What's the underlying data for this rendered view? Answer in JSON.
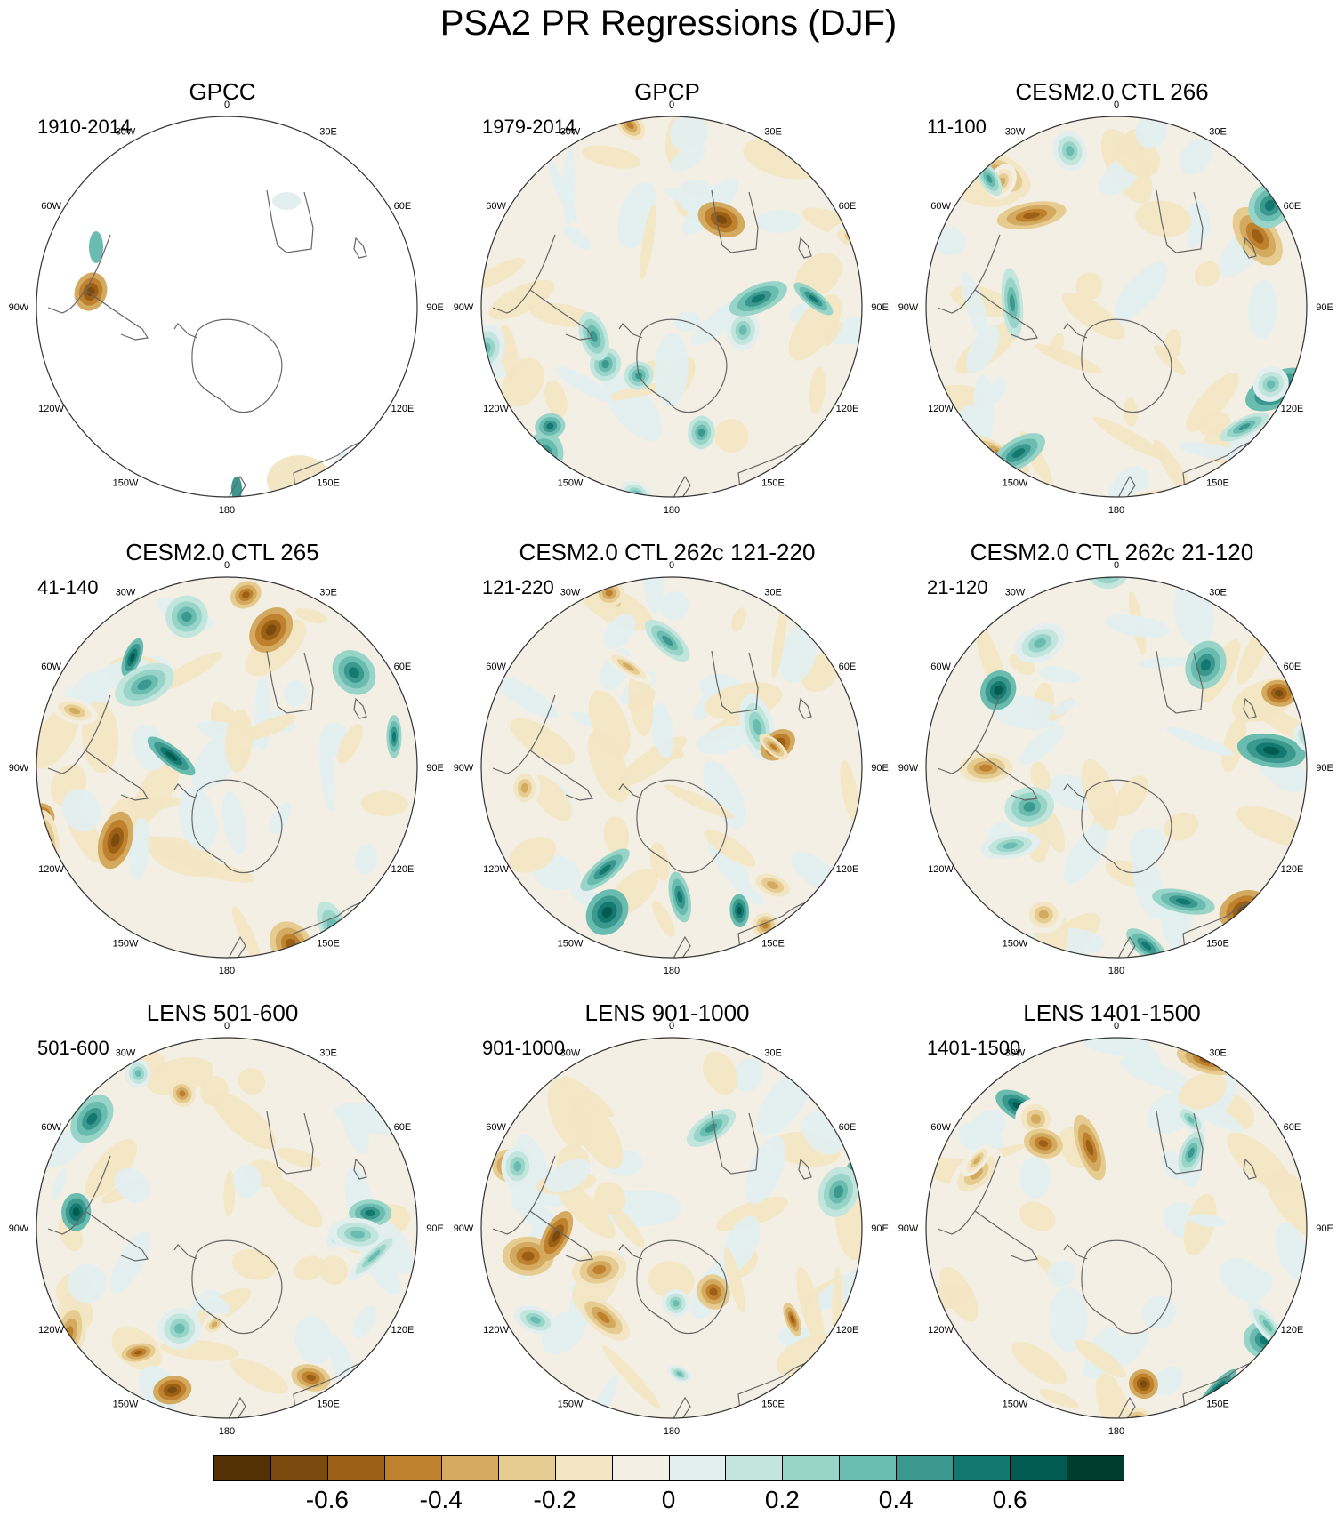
{
  "title": "PSA2 PR Regressions (DJF)",
  "lon_labels": [
    "0",
    "30E",
    "60E",
    "90E",
    "120E",
    "150E",
    "180",
    "150W",
    "120W",
    "90W",
    "60W",
    "30W"
  ],
  "panels": [
    {
      "title": "GPCC",
      "period": "1910-2014",
      "land_only": true
    },
    {
      "title": "GPCP",
      "period": "1979-2014",
      "land_only": false
    },
    {
      "title": "CESM2.0 CTL 266",
      "period": "11-100",
      "land_only": false
    },
    {
      "title": "CESM2.0 CTL 265",
      "period": "41-140",
      "land_only": false
    },
    {
      "title": "CESM2.0 CTL 262c 121-220",
      "period": "121-220",
      "land_only": false
    },
    {
      "title": "CESM2.0 CTL 262c 21-120",
      "period": "21-120",
      "land_only": false
    },
    {
      "title": "LENS 501-600",
      "period": "501-600",
      "land_only": false
    },
    {
      "title": "LENS 901-1000",
      "period": "901-1000",
      "land_only": false
    },
    {
      "title": "LENS 1401-1500",
      "period": "1401-1500",
      "land_only": false
    }
  ],
  "colorbar": {
    "colors": [
      "#543005",
      "#7a4a0e",
      "#9c5f16",
      "#bf812d",
      "#d3aa5f",
      "#e6cc91",
      "#f3e6c4",
      "#f4efe4",
      "#e3efef",
      "#c2e6de",
      "#98d4c8",
      "#6bbcb0",
      "#3b988f",
      "#137970",
      "#015b50",
      "#003c30"
    ],
    "tick_labels": [
      "-0.6",
      "-0.4",
      "-0.2",
      "0",
      "0.2",
      "0.4",
      "0.6"
    ],
    "tick_boundaries": [
      2,
      4,
      6,
      8,
      10,
      12,
      14
    ]
  }
}
